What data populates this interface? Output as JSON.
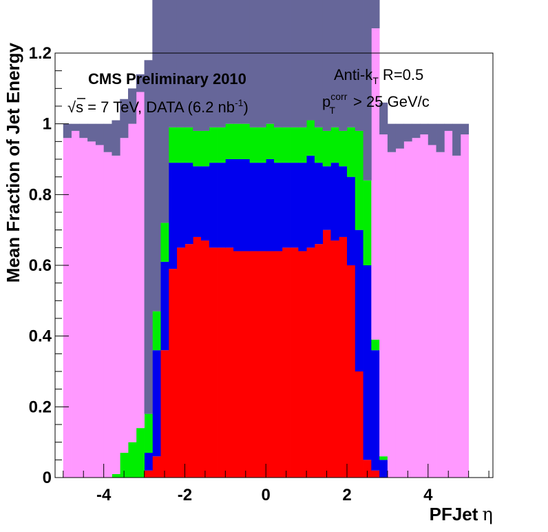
{
  "chart_data": {
    "type": "area",
    "style": "stacked step histogram",
    "xlabel": "PFJet",
    "xlabel_symbol": "η",
    "ylabel": "Mean Fraction of Jet Energy",
    "xlim": [
      -5.2,
      5.6
    ],
    "ylim": [
      0,
      1.2
    ],
    "x_ticks": [
      "-4",
      "-2",
      "0",
      "2",
      "4"
    ],
    "x_tick_values": [
      -4,
      -2,
      0,
      2,
      4
    ],
    "y_ticks": [
      "0",
      "0.2",
      "0.4",
      "0.6",
      "0.8",
      "1",
      "1.2"
    ],
    "y_tick_values": [
      0,
      0.2,
      0.4,
      0.6,
      0.8,
      1.0,
      1.2
    ],
    "grid": false,
    "annotations": {
      "experiment": "CMS Preliminary 2010",
      "energy_prefix": "√s = 7 TeV, DATA (6.2 nb",
      "energy_sup": "-1",
      "energy_suffix": ")",
      "algo_prefix": "Anti-k",
      "algo_sub": "T",
      "algo_suffix": " R=0.5",
      "pt_main": "p",
      "pt_sup": "corr",
      "pt_sub": "T",
      "pt_suffix": " > 25 GeV/c"
    },
    "bin_edges": [
      -5.0,
      -4.8,
      -4.6,
      -4.4,
      -4.2,
      -4.0,
      -3.8,
      -3.6,
      -3.4,
      -3.2,
      -3.0,
      -2.8,
      -2.6,
      -2.4,
      -2.2,
      -2.0,
      -1.8,
      -1.6,
      -1.4,
      -1.2,
      -1.0,
      -0.8,
      -0.6,
      -0.4,
      -0.2,
      0.0,
      0.2,
      0.4,
      0.6,
      0.8,
      1.0,
      1.2,
      1.4,
      1.6,
      1.8,
      2.0,
      2.2,
      2.4,
      2.6,
      2.8,
      3.0,
      3.2,
      3.4,
      3.6,
      3.8,
      4.0,
      4.2,
      4.4,
      4.6,
      4.8,
      5.0
    ],
    "series": [
      {
        "color": "#ff0000",
        "values": [
          0,
          0,
          0,
          0,
          0,
          0,
          0,
          0,
          0,
          0,
          0.02,
          0.06,
          0.36,
          0.59,
          0.65,
          0.66,
          0.68,
          0.67,
          0.65,
          0.65,
          0.65,
          0.64,
          0.64,
          0.64,
          0.64,
          0.64,
          0.64,
          0.65,
          0.65,
          0.64,
          0.65,
          0.66,
          0.7,
          0.67,
          0.68,
          0.6,
          0.3,
          0.05,
          0.02,
          0,
          0,
          0,
          0,
          0,
          0,
          0,
          0,
          0,
          0,
          0
        ]
      },
      {
        "color": "#0000ee",
        "values": [
          0,
          0,
          0,
          0,
          0,
          0,
          0,
          0,
          0,
          0,
          0.05,
          0.3,
          0.25,
          0.3,
          0.24,
          0.23,
          0.2,
          0.21,
          0.24,
          0.24,
          0.25,
          0.26,
          0.26,
          0.25,
          0.25,
          0.26,
          0.25,
          0.24,
          0.24,
          0.25,
          0.26,
          0.23,
          0.18,
          0.22,
          0.2,
          0.25,
          0.4,
          0.55,
          0.34,
          0.05,
          0,
          0,
          0,
          0,
          0,
          0,
          0,
          0,
          0,
          0
        ]
      },
      {
        "color": "#00ee00",
        "values": [
          0,
          0,
          0,
          0,
          0,
          0,
          0.01,
          0.07,
          0.1,
          0.14,
          0.11,
          0.11,
          0.11,
          0.1,
          0.1,
          0.1,
          0.1,
          0.1,
          0.1,
          0.1,
          0.1,
          0.1,
          0.1,
          0.1,
          0.1,
          0.1,
          0.1,
          0.1,
          0.1,
          0.1,
          0.1,
          0.1,
          0.1,
          0.1,
          0.1,
          0.14,
          0.28,
          0.24,
          0.03,
          0.01,
          0,
          0,
          0,
          0,
          0,
          0,
          0,
          0,
          0,
          0
        ]
      },
      {
        "color": "#00eeee",
        "values": [
          0,
          0,
          0,
          0,
          0,
          0,
          0,
          0,
          0,
          0,
          0,
          0,
          0,
          0,
          0,
          0,
          0,
          0,
          0,
          0,
          0,
          0,
          0,
          0,
          0,
          0,
          0,
          0,
          0,
          0,
          0,
          0,
          0,
          0,
          0,
          0,
          0,
          0,
          0,
          0,
          0,
          0,
          0,
          0,
          0,
          0,
          0,
          0,
          0,
          0
        ]
      },
      {
        "color": "#ff99ff",
        "values": [
          0.96,
          0.98,
          0.96,
          0.95,
          0.94,
          0.92,
          0.9,
          0.89,
          0.9,
          0.95,
          0,
          0,
          0,
          0,
          0,
          0,
          0,
          0,
          0,
          0,
          0,
          0,
          0,
          0,
          0,
          0,
          0,
          0,
          0,
          0,
          0,
          0,
          0,
          0,
          0,
          0,
          0,
          0,
          0.88,
          0.91,
          0.92,
          0.93,
          0.95,
          0.96,
          0.97,
          0.94,
          0.92,
          0.98,
          0.91,
          0.97
        ]
      },
      {
        "color": "#666699",
        "values": [
          0.04,
          0.02,
          0.04,
          0.05,
          0.06,
          0.08,
          0.1,
          0.11,
          0.1,
          0.05,
          1.0,
          1.0,
          1.0,
          1.0,
          1.0,
          1.0,
          1.0,
          1.0,
          1.0,
          1.0,
          1.0,
          1.0,
          1.0,
          1.0,
          1.0,
          1.0,
          1.0,
          1.0,
          1.0,
          1.0,
          1.0,
          1.0,
          1.0,
          1.0,
          1.0,
          1.0,
          1.0,
          1.0,
          0.12,
          0.09,
          0.08,
          0.07,
          0.05,
          0.04,
          0.03,
          0.06,
          0.08,
          0.02,
          0.09,
          0.03
        ]
      }
    ]
  }
}
